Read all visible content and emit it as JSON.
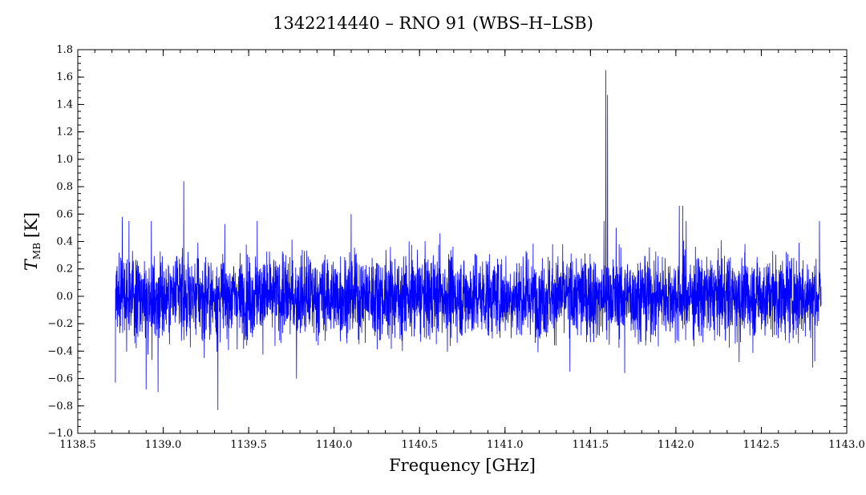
{
  "chart_data": {
    "type": "line",
    "title": "1342214440 – RNO 91 (WBS–H–LSB)",
    "xlabel": "Frequency [GHz]",
    "ylabel_main": "T",
    "ylabel_sub": "MB",
    "ylabel_unit": "[K]",
    "xlim": [
      1138.5,
      1143.0
    ],
    "ylim": [
      -1.0,
      1.8
    ],
    "x_ticks": [
      "1138.5",
      "1139.0",
      "1139.5",
      "1140.0",
      "1140.5",
      "1141.0",
      "1141.5",
      "1142.0",
      "1142.5",
      "1143.0"
    ],
    "y_ticks": [
      "−1.0",
      "−0.8",
      "−0.6",
      "−0.4",
      "−0.2",
      "0.0",
      "0.2",
      "0.4",
      "0.6",
      "0.8",
      "1.0",
      "1.2",
      "1.4",
      "1.6",
      "1.8"
    ],
    "grid": false,
    "series": [
      {
        "color": "#0000ff",
        "x_range": [
          1138.72,
          1142.85
        ],
        "noise_rms": 0.15,
        "x": [
          1138.72,
          1138.73,
          1138.76,
          1138.8,
          1138.9,
          1138.93,
          1138.97,
          1139.12,
          1139.24,
          1139.32,
          1139.55,
          1139.78,
          1140.1,
          1140.4,
          1140.53,
          1140.58,
          1140.62,
          1141.38,
          1141.58,
          1141.59,
          1141.6,
          1141.65,
          1141.7,
          1142.02,
          1142.04,
          1142.06,
          1142.37,
          1142.8,
          1142.84
        ],
        "y": [
          -0.63,
          0.22,
          0.58,
          0.55,
          -0.68,
          0.55,
          -0.7,
          0.84,
          -0.45,
          -0.83,
          0.55,
          -0.6,
          0.6,
          -0.4,
          0.25,
          0.3,
          0.46,
          -0.55,
          0.55,
          1.65,
          1.47,
          0.5,
          -0.56,
          0.66,
          0.66,
          0.55,
          -0.48,
          -0.52,
          0.55
        ]
      }
    ]
  }
}
